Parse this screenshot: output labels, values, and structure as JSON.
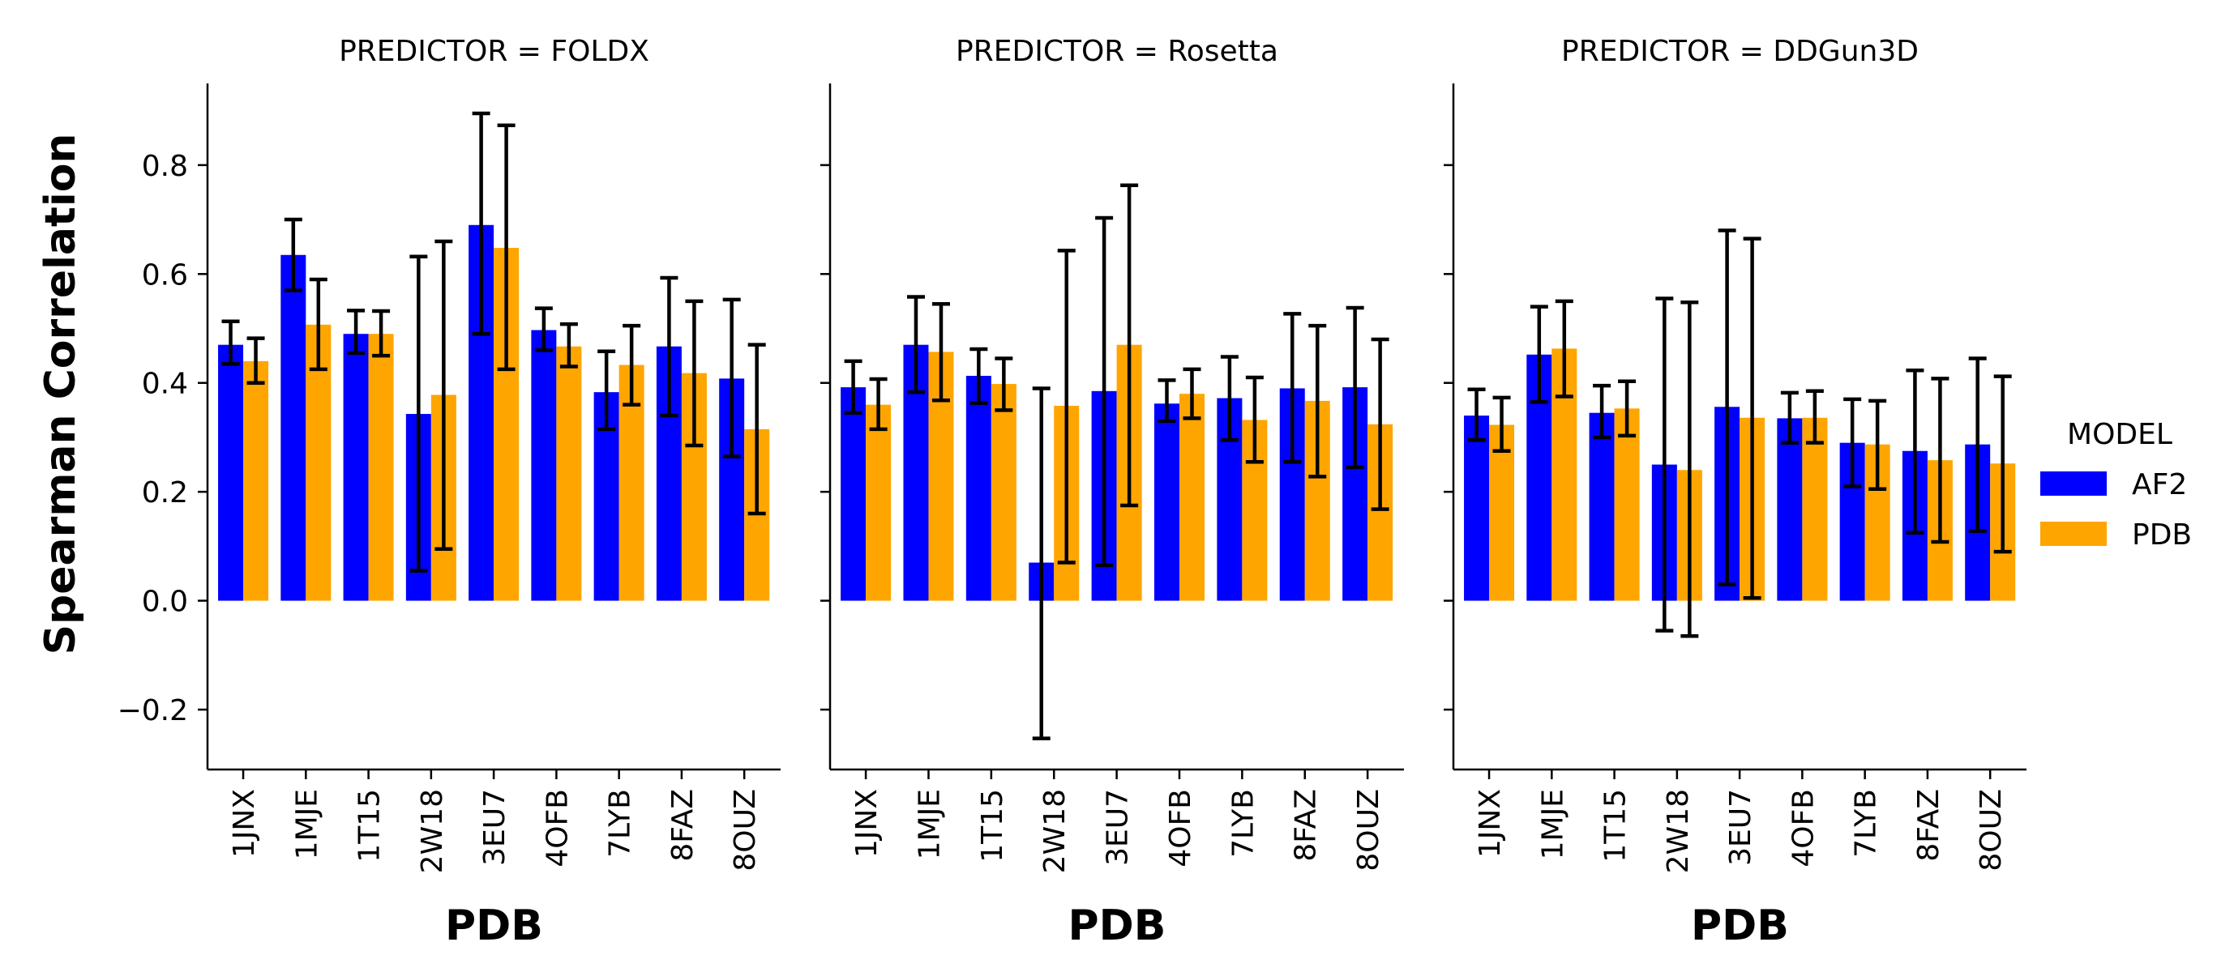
{
  "chart_data": {
    "type": "bar",
    "ylabel": "Spearman Correlation",
    "ylim": [
      -0.31,
      0.95
    ],
    "yticks": [
      -0.2,
      0.0,
      0.2,
      0.4,
      0.6,
      0.8
    ],
    "ytick_labels": [
      "−0.2",
      "0.0",
      "0.2",
      "0.4",
      "0.6",
      "0.8"
    ],
    "grid": false,
    "legend": {
      "title": "MODEL",
      "placement": "right",
      "entries": [
        {
          "name": "AF2",
          "color": "#0000ff"
        },
        {
          "name": "PDB",
          "color": "#ffa500"
        }
      ]
    },
    "categories": [
      "1JNX",
      "1MJE",
      "1T15",
      "2W18",
      "3EU7",
      "4OFB",
      "7LYB",
      "8FAZ",
      "8OUZ"
    ],
    "panels": [
      {
        "title": "PREDICTOR = FOLDX",
        "xlabel": "PDB",
        "series": [
          {
            "name": "AF2",
            "values": [
              0.47,
              0.635,
              0.49,
              0.343,
              0.69,
              0.497,
              0.383,
              0.467,
              0.408
            ],
            "err_low": [
              0.435,
              0.57,
              0.455,
              0.055,
              0.49,
              0.46,
              0.315,
              0.34,
              0.265
            ],
            "err_high": [
              0.513,
              0.7,
              0.533,
              0.632,
              0.895,
              0.537,
              0.458,
              0.593,
              0.553
            ]
          },
          {
            "name": "PDB",
            "values": [
              0.44,
              0.507,
              0.49,
              0.378,
              0.648,
              0.467,
              0.433,
              0.418,
              0.315
            ],
            "err_low": [
              0.4,
              0.425,
              0.45,
              0.095,
              0.425,
              0.43,
              0.36,
              0.285,
              0.16
            ],
            "err_high": [
              0.482,
              0.59,
              0.532,
              0.66,
              0.873,
              0.508,
              0.505,
              0.55,
              0.47
            ]
          }
        ]
      },
      {
        "title": "PREDICTOR = Rosetta",
        "xlabel": "PDB",
        "series": [
          {
            "name": "AF2",
            "values": [
              0.392,
              0.47,
              0.413,
              0.07,
              0.385,
              0.362,
              0.372,
              0.39,
              0.392
            ],
            "err_low": [
              0.345,
              0.383,
              0.363,
              -0.253,
              0.065,
              0.33,
              0.295,
              0.255,
              0.245
            ],
            "err_high": [
              0.44,
              0.558,
              0.462,
              0.39,
              0.703,
              0.405,
              0.448,
              0.527,
              0.538
            ]
          },
          {
            "name": "PDB",
            "values": [
              0.36,
              0.457,
              0.398,
              0.358,
              0.47,
              0.38,
              0.332,
              0.367,
              0.324
            ],
            "err_low": [
              0.315,
              0.368,
              0.35,
              0.07,
              0.175,
              0.335,
              0.255,
              0.228,
              0.168
            ],
            "err_high": [
              0.407,
              0.545,
              0.445,
              0.643,
              0.763,
              0.425,
              0.41,
              0.505,
              0.48
            ]
          }
        ]
      },
      {
        "title": "PREDICTOR = DDGun3D",
        "xlabel": "PDB",
        "series": [
          {
            "name": "AF2",
            "values": [
              0.34,
              0.452,
              0.345,
              0.25,
              0.356,
              0.335,
              0.29,
              0.275,
              0.287
            ],
            "err_low": [
              0.295,
              0.365,
              0.3,
              -0.055,
              0.03,
              0.29,
              0.21,
              0.125,
              0.128
            ],
            "err_high": [
              0.388,
              0.54,
              0.395,
              0.555,
              0.68,
              0.382,
              0.37,
              0.423,
              0.445
            ]
          },
          {
            "name": "PDB",
            "values": [
              0.323,
              0.463,
              0.353,
              0.24,
              0.336,
              0.336,
              0.287,
              0.258,
              0.252
            ],
            "err_low": [
              0.275,
              0.375,
              0.303,
              -0.065,
              0.005,
              0.29,
              0.205,
              0.108,
              0.09
            ],
            "err_high": [
              0.373,
              0.55,
              0.403,
              0.548,
              0.665,
              0.385,
              0.367,
              0.408,
              0.412
            ]
          }
        ]
      }
    ]
  }
}
